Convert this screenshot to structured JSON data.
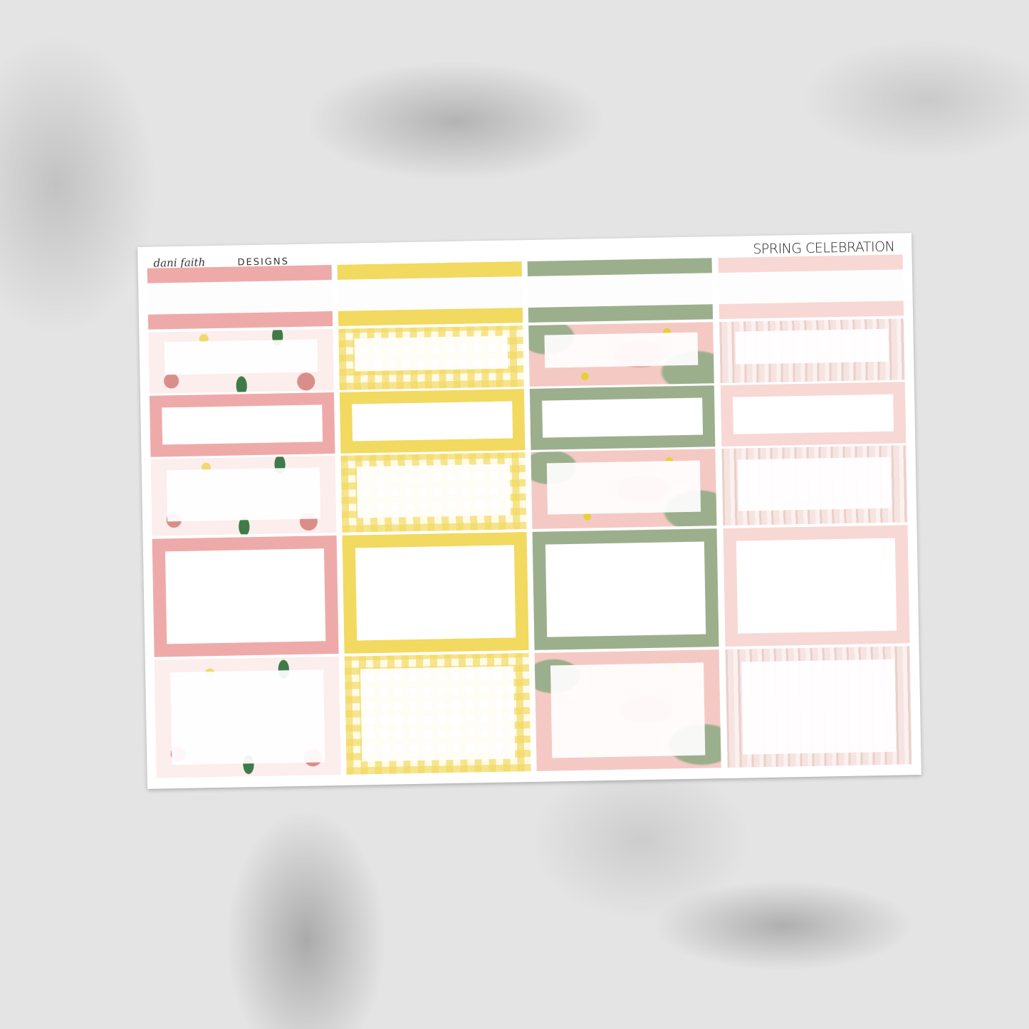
{
  "sheet": {
    "brand_logo": "dani faith",
    "brand_suffix": "DESIGNS",
    "title": "SPRING CELEBRATION"
  },
  "columns": [
    {
      "name": "pink-floral",
      "color": "#eeaaa9",
      "pattern": "floral",
      "pattern_bg": "#fbeeec",
      "accent": "#3f7a48"
    },
    {
      "name": "yellow-gingham",
      "color": "#f2d95f",
      "pattern": "gingham",
      "pattern_bg": "#fbf0b8",
      "accent": "#f2d95f"
    },
    {
      "name": "sage-camo",
      "color": "#9caf8d",
      "pattern": "camo",
      "pattern_bg": "#f4c9c4",
      "accent": "#e8cf3a"
    },
    {
      "name": "blush-wood",
      "color": "#f8d8d4",
      "pattern": "wood",
      "pattern_bg": "#f6e4e1",
      "accent": "#ead0cc"
    }
  ]
}
